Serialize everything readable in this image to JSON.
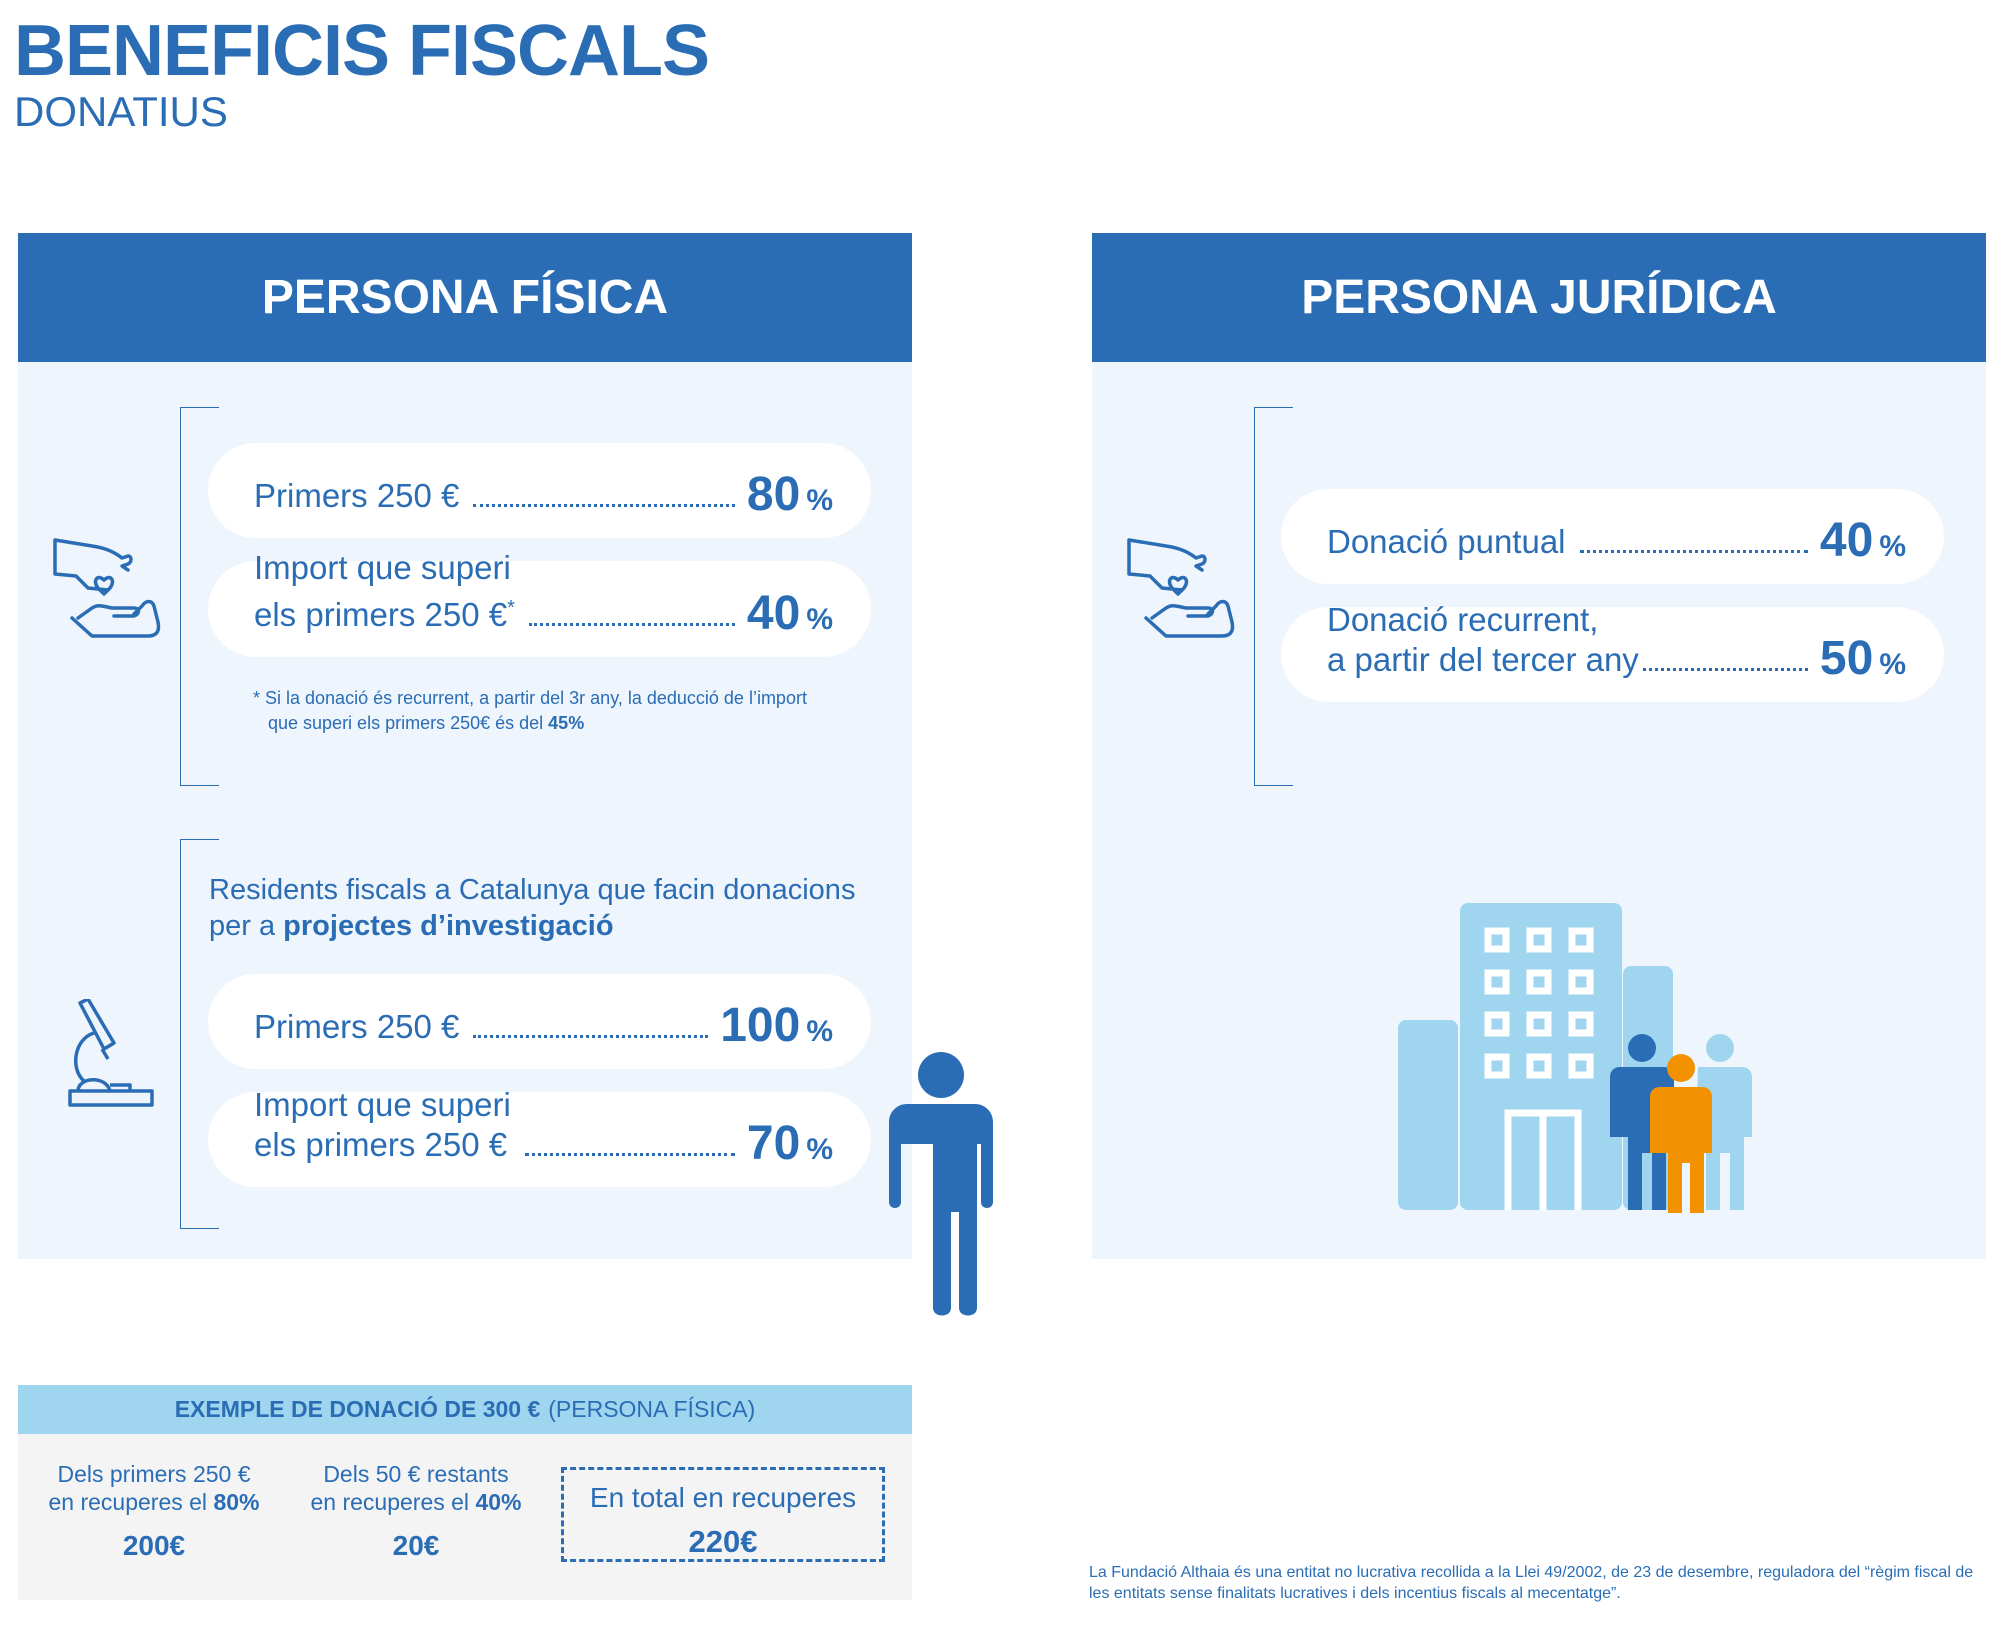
{
  "header": {
    "title": "BENEFICIS FISCALS",
    "subtitle": "DONATIUS"
  },
  "fisica": {
    "heading": "PERSONA FÍSICA",
    "general": {
      "rows": [
        {
          "lines": [
            "Primers 250 €"
          ],
          "value": "80",
          "unit": "%"
        },
        {
          "lines": [
            "Import que superi",
            "els primers 250 €"
          ],
          "mark": "*",
          "value": "40",
          "unit": "%"
        }
      ],
      "note": {
        "lines": [
          "* Si la donació és recurrent, a partir del 3r any, la deducció de l’import",
          "que superi els primers 250€ és del"
        ],
        "bold": "45%"
      }
    },
    "research": {
      "intro": "Residents fiscals a Catalunya que facin donacions per a",
      "intro_bold": "projectes d’investigació",
      "rows": [
        {
          "lines": [
            "Primers 250 €"
          ],
          "value": "100",
          "unit": "%"
        },
        {
          "lines": [
            "Import que superi",
            "els primers 250 €"
          ],
          "value": "70",
          "unit": "%"
        }
      ]
    }
  },
  "juridica": {
    "heading": "PERSONA JURÍDICA",
    "rows": [
      {
        "lines": [
          "Donació puntual"
        ],
        "value": "40",
        "unit": "%"
      },
      {
        "lines": [
          "Donació recurrent,",
          "a partir del tercer any"
        ],
        "value": "50",
        "unit": "%"
      }
    ]
  },
  "example": {
    "title_bold": "EXEMPLE DE DONACIÓ DE 300 €",
    "title_rest": "(PERSONA FÍSICA)",
    "columns": [
      {
        "line": "Dels primers 250 €",
        "prefix": "en recuperes el",
        "rate": "80%",
        "amount": "200€"
      },
      {
        "line": "Dels 50 € restants",
        "prefix": "en recuperes el",
        "rate": "40%",
        "amount": "20€"
      }
    ],
    "total": {
      "label": "En total en recuperes",
      "amount": "220€"
    }
  },
  "footer": "La Fundació Althaia és una entitat no lucrativa recollida a la Llei 49/2002, de 23 de desembre, reguladora del “règim fiscal de les entitats sense finalitats lucratives i dels incentius fiscals al mecentatge”."
}
